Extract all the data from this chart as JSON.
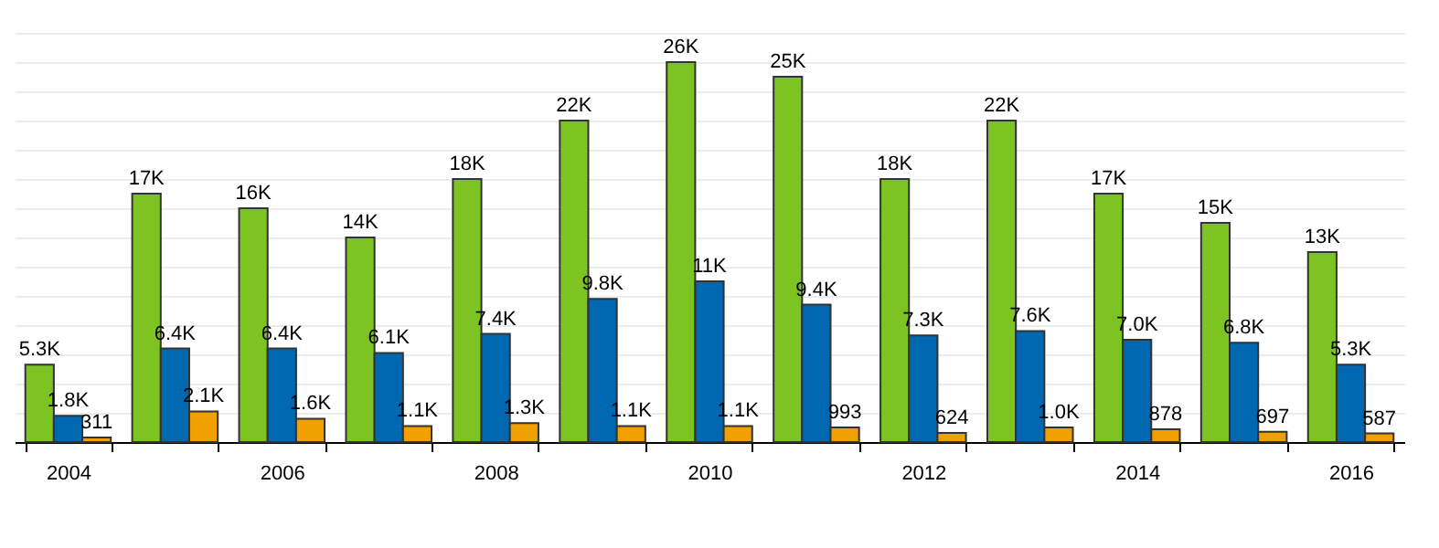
{
  "chart_data": {
    "type": "bar",
    "categories": [
      "2004",
      null,
      "2006",
      null,
      "2008",
      null,
      "2010",
      null,
      "2012",
      null,
      "2014",
      null,
      "2016"
    ],
    "series": [
      {
        "color": "#7dc423",
        "values": [
          5300,
          17000,
          16000,
          14000,
          18000,
          22000,
          26000,
          25000,
          18000,
          22000,
          17000,
          15000,
          13000
        ],
        "value_labels": [
          "5.3K",
          "17K",
          "16K",
          "14K",
          "18K",
          "22K",
          "26K",
          "25K",
          "18K",
          "22K",
          "17K",
          "15K",
          "13K"
        ]
      },
      {
        "color": "#0068b0",
        "values": [
          1800,
          6400,
          6400,
          6100,
          7400,
          9800,
          11000,
          9400,
          7300,
          7600,
          7000,
          6800,
          5300
        ],
        "value_labels": [
          "1.8K",
          "6.4K",
          "6.4K",
          "6.1K",
          "7.4K",
          "9.8K",
          "11K",
          "9.4K",
          "7.3K",
          "7.6K",
          "7.0K",
          "6.8K",
          "5.3K"
        ]
      },
      {
        "color": "#f0a000",
        "values": [
          311,
          2100,
          1600,
          1100,
          1300,
          1100,
          1100,
          993,
          624,
          1000,
          878,
          697,
          587
        ],
        "value_labels": [
          "311",
          "2.1K",
          "1.6K",
          "1.1K",
          "1.3K",
          "1.1K",
          "1.1K",
          "993",
          "624",
          "1.0K",
          "878",
          "697",
          "587"
        ]
      }
    ],
    "ylim": [
      0,
      28000
    ],
    "grid": "y",
    "tick_labels": "x",
    "legend": false
  }
}
